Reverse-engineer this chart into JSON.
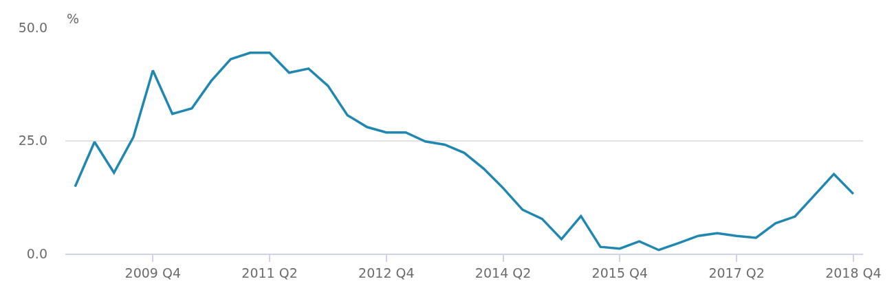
{
  "chart_data": {
    "type": "line",
    "ylabel": "%",
    "categories": [
      null,
      null,
      null,
      null,
      "2009 Q4",
      null,
      null,
      null,
      null,
      null,
      "2011 Q2",
      null,
      null,
      null,
      null,
      null,
      "2012 Q4",
      null,
      null,
      null,
      null,
      null,
      "2014 Q2",
      null,
      null,
      null,
      null,
      null,
      "2015 Q4",
      null,
      null,
      null,
      null,
      null,
      "2017 Q2",
      null,
      null,
      null,
      null,
      null,
      "2018 Q4"
    ],
    "series": [
      {
        "color": "#1f87b0",
        "values": [
          14.8,
          24.7,
          17.9,
          25.8,
          40.5,
          30.9,
          32.1,
          38.2,
          43.0,
          44.4,
          44.4,
          40.0,
          40.9,
          37.1,
          30.6,
          28.0,
          26.8,
          26.8,
          24.8,
          24.1,
          22.3,
          18.8,
          14.5,
          9.7,
          7.7,
          3.2,
          8.3,
          1.5,
          1.1,
          2.7,
          0.8,
          2.3,
          3.9,
          4.5,
          3.9,
          3.5,
          6.7,
          8.2,
          12.9,
          17.6,
          13.2
        ]
      }
    ],
    "ylim": [
      0,
      50
    ],
    "yticks": [
      {
        "value": 0,
        "label": "0.0"
      },
      {
        "value": 25,
        "label": "25.0"
      },
      {
        "value": 50,
        "label": "50.0"
      }
    ],
    "grid": "y",
    "legend": false,
    "marker": "none",
    "line_style": "solid"
  }
}
